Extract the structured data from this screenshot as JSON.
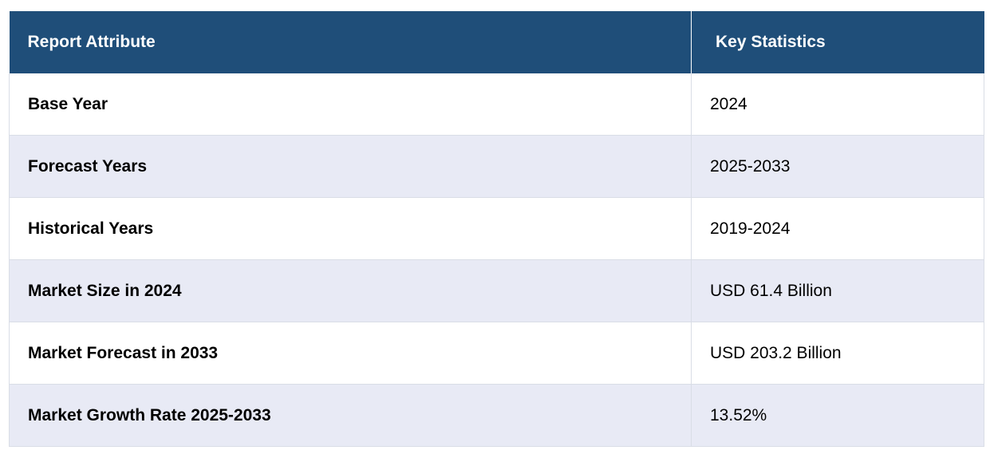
{
  "table": {
    "headers": [
      "Report Attribute",
      "Key Statistics"
    ],
    "rows": [
      {
        "attribute": "Base Year",
        "value": "2024"
      },
      {
        "attribute": "Forecast Years",
        "value": "2025-2033"
      },
      {
        "attribute": "Historical Years",
        "value": "2019-2024"
      },
      {
        "attribute": "Market Size in 2024",
        "value": "USD 61.4 Billion"
      },
      {
        "attribute": "Market Forecast in 2033",
        "value": "USD 203.2 Billion"
      },
      {
        "attribute": "Market Growth Rate 2025-2033",
        "value": "13.52%"
      }
    ]
  },
  "colors": {
    "header_bg": "#1f4e79",
    "header_text": "#ffffff",
    "row_alt_bg": "#e8eaf5",
    "row_bg": "#ffffff"
  }
}
